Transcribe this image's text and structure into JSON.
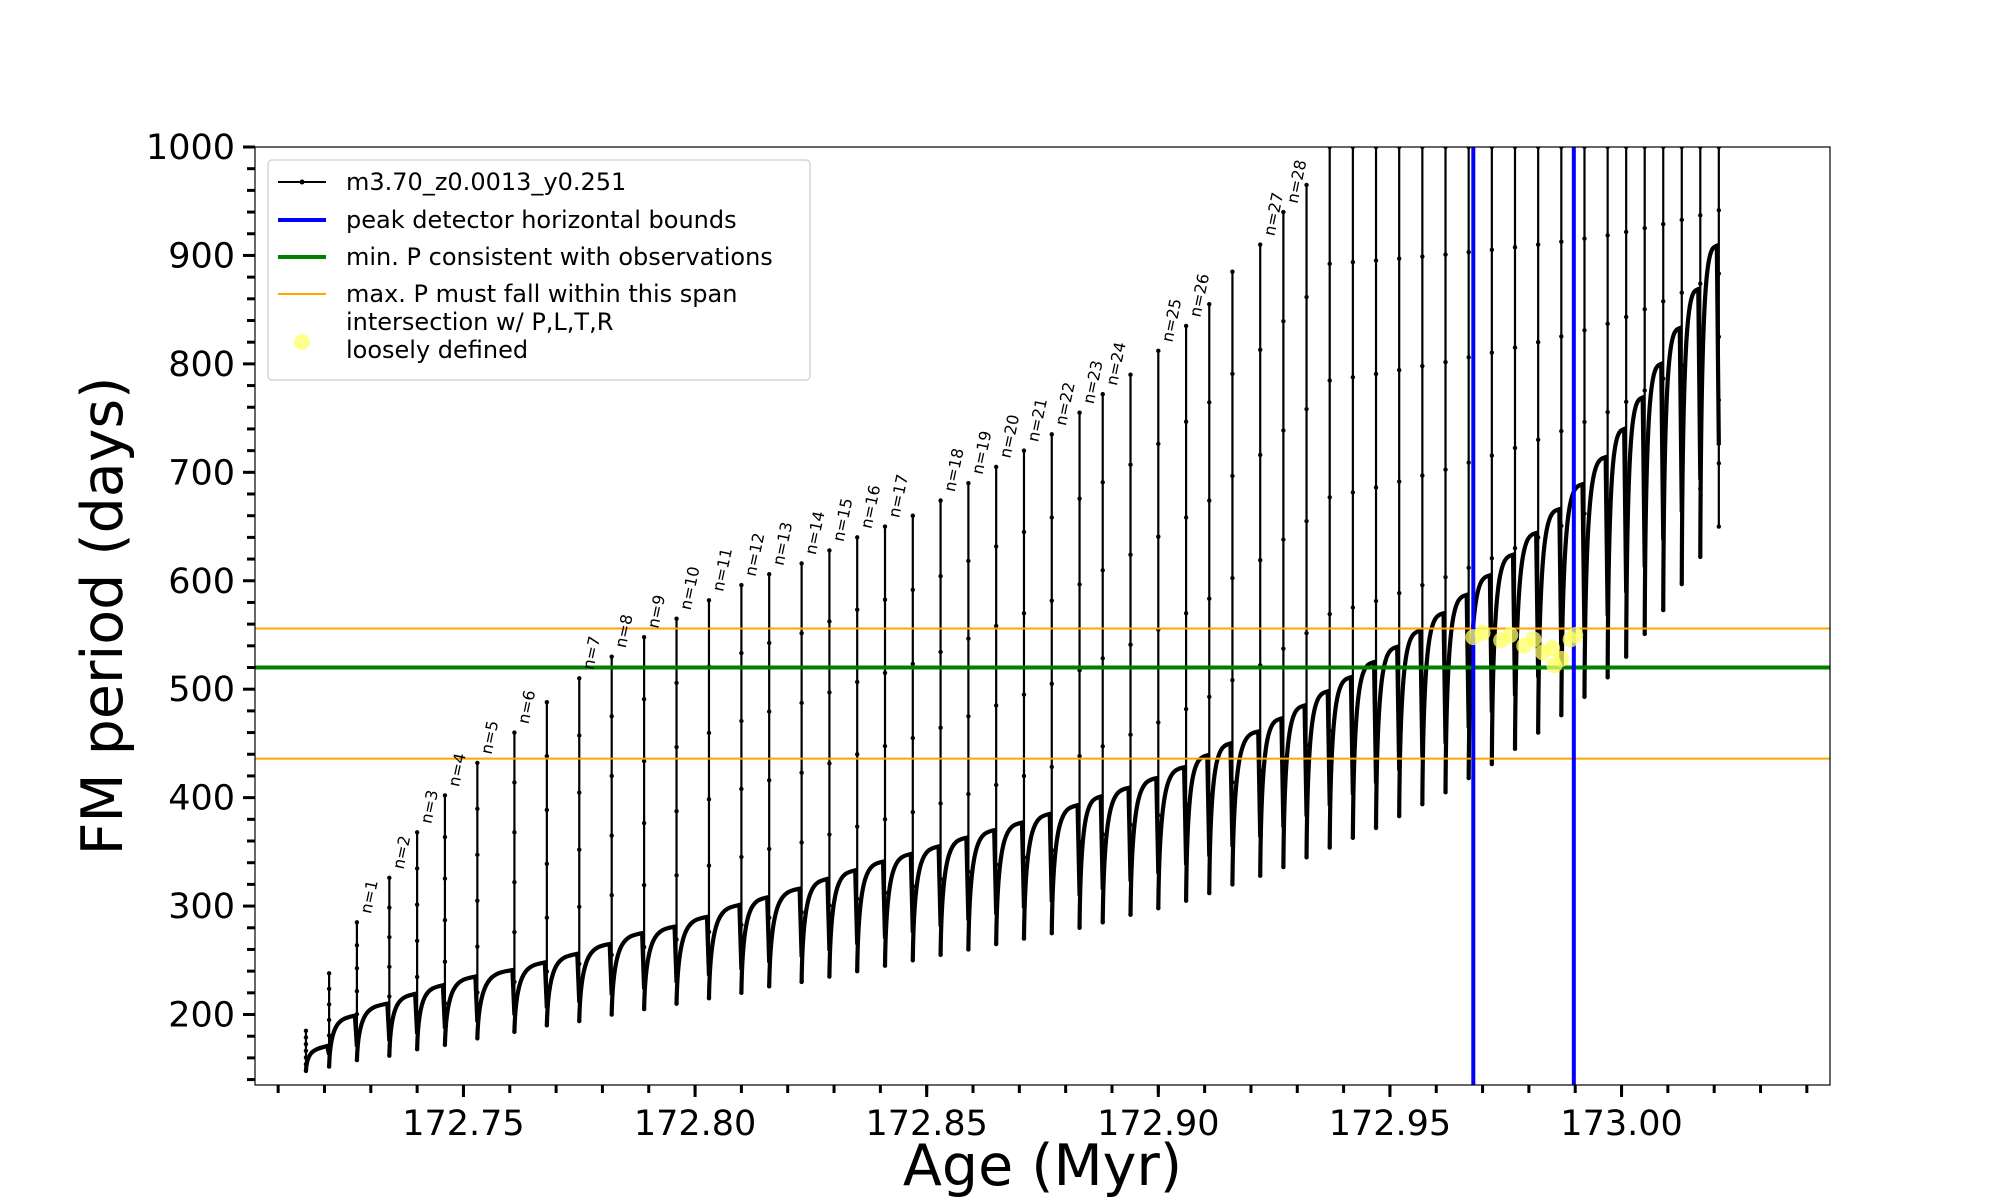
{
  "chart_data": {
    "type": "line",
    "xlabel": "Age (Myr)",
    "ylabel": "FM period (days)",
    "xlim": [
      172.705,
      173.045
    ],
    "ylim": [
      135,
      1000
    ],
    "x_ticks": [
      "172.75",
      "172.80",
      "172.85",
      "172.90",
      "172.95",
      "173.00"
    ],
    "x_tick_values": [
      172.75,
      172.8,
      172.85,
      172.9,
      172.95,
      173.0
    ],
    "y_ticks": [
      "200",
      "300",
      "400",
      "500",
      "600",
      "700",
      "800",
      "900",
      "1000"
    ],
    "y_tick_values": [
      200,
      300,
      400,
      500,
      600,
      700,
      800,
      900,
      1000
    ],
    "grid": false,
    "legend_position": "top-left",
    "legend": [
      {
        "label": "m3.70_z0.0013_y0.251",
        "color": "#000000",
        "style": "line-marker"
      },
      {
        "label": "peak detector horizontal bounds",
        "color": "#0000ff",
        "style": "thick-line"
      },
      {
        "label": "min. P consistent with observations",
        "color": "#008000",
        "style": "thick-line"
      },
      {
        "label": "max. P must fall within this span",
        "color": "#ffa500",
        "style": "thin-line"
      },
      {
        "label": "intersection w/ P,L,T,R\nloosely defined",
        "color": "#ffff66",
        "style": "marker"
      }
    ],
    "reference_lines": {
      "vertical_blue": [
        172.968,
        172.9897
      ],
      "horizontal_green": 520,
      "horizontal_orange": [
        436,
        556
      ]
    },
    "series": [
      {
        "name": "m3.70_z0.0013_y0.251",
        "color": "#000000",
        "pulses": [
          {
            "x": 172.716,
            "low": 148,
            "high": 185,
            "top": 168
          },
          {
            "x": 172.721,
            "low": 152,
            "high": 238,
            "top": 196
          },
          {
            "x": 172.727,
            "low": 158,
            "high": 285,
            "top": 207,
            "label": "n=1"
          },
          {
            "x": 172.734,
            "low": 162,
            "high": 326,
            "top": 216,
            "label": "n=2"
          },
          {
            "x": 172.74,
            "low": 168,
            "high": 368,
            "top": 224,
            "label": "n=3"
          },
          {
            "x": 172.746,
            "low": 172,
            "high": 402,
            "top": 232,
            "label": "n=4"
          },
          {
            "x": 172.753,
            "low": 178,
            "high": 432,
            "top": 238,
            "label": "n=5"
          },
          {
            "x": 172.761,
            "low": 184,
            "high": 460,
            "top": 245,
            "label": "n=6"
          },
          {
            "x": 172.768,
            "low": 190,
            "high": 488,
            "top": 253
          },
          {
            "x": 172.775,
            "low": 194,
            "high": 510,
            "top": 262,
            "label": "n=7"
          },
          {
            "x": 172.782,
            "low": 200,
            "high": 530,
            "top": 272,
            "label": "n=8"
          },
          {
            "x": 172.789,
            "low": 205,
            "high": 548,
            "top": 278,
            "label": "n=9"
          },
          {
            "x": 172.796,
            "low": 210,
            "high": 565,
            "top": 287,
            "label": "n=10"
          },
          {
            "x": 172.803,
            "low": 215,
            "high": 582,
            "top": 298,
            "label": "n=11"
          },
          {
            "x": 172.81,
            "low": 220,
            "high": 596,
            "top": 305,
            "label": "n=12"
          },
          {
            "x": 172.816,
            "low": 226,
            "high": 606,
            "top": 313,
            "label": "n=13"
          },
          {
            "x": 172.823,
            "low": 230,
            "high": 616,
            "top": 322,
            "label": "n=14"
          },
          {
            "x": 172.829,
            "low": 235,
            "high": 628,
            "top": 330,
            "label": "n=15"
          },
          {
            "x": 172.835,
            "low": 240,
            "high": 640,
            "top": 338,
            "label": "n=16"
          },
          {
            "x": 172.841,
            "low": 245,
            "high": 650,
            "top": 345,
            "label": "n=17"
          },
          {
            "x": 172.847,
            "low": 250,
            "high": 660,
            "top": 352
          },
          {
            "x": 172.853,
            "low": 255,
            "high": 674,
            "top": 360,
            "label": "n=18"
          },
          {
            "x": 172.859,
            "low": 260,
            "high": 690,
            "top": 367,
            "label": "n=19"
          },
          {
            "x": 172.865,
            "low": 265,
            "high": 705,
            "top": 374,
            "label": "n=20"
          },
          {
            "x": 172.871,
            "low": 270,
            "high": 720,
            "top": 382,
            "label": "n=21"
          },
          {
            "x": 172.877,
            "low": 275,
            "high": 735,
            "top": 390,
            "label": "n=22"
          },
          {
            "x": 172.883,
            "low": 280,
            "high": 755,
            "top": 398,
            "label": "n=23"
          },
          {
            "x": 172.888,
            "low": 285,
            "high": 772,
            "top": 406,
            "label": "n=24"
          },
          {
            "x": 172.894,
            "low": 292,
            "high": 790,
            "top": 415
          },
          {
            "x": 172.9,
            "low": 298,
            "high": 812,
            "top": 425,
            "label": "n=25"
          },
          {
            "x": 172.906,
            "low": 305,
            "high": 835,
            "top": 436,
            "label": "n=26"
          },
          {
            "x": 172.911,
            "low": 312,
            "high": 855,
            "top": 447
          },
          {
            "x": 172.916,
            "low": 320,
            "high": 885,
            "top": 458
          },
          {
            "x": 172.922,
            "low": 328,
            "high": 910,
            "top": 470,
            "label": "n=27"
          },
          {
            "x": 172.927,
            "low": 336,
            "high": 940,
            "top": 482,
            "label": "n=28"
          },
          {
            "x": 172.932,
            "low": 345,
            "high": 965,
            "top": 495
          },
          {
            "x": 172.937,
            "low": 354,
            "high": 1000,
            "top": 508
          },
          {
            "x": 172.942,
            "low": 363,
            "high": 1000,
            "top": 522
          },
          {
            "x": 172.947,
            "low": 372,
            "high": 1000,
            "top": 536
          },
          {
            "x": 172.952,
            "low": 383,
            "high": 1000,
            "top": 551
          },
          {
            "x": 172.957,
            "low": 394,
            "high": 1000,
            "top": 567
          },
          {
            "x": 172.962,
            "low": 405,
            "high": 1000,
            "top": 584
          },
          {
            "x": 172.967,
            "low": 418,
            "high": 1000,
            "top": 602
          },
          {
            "x": 172.972,
            "low": 431,
            "high": 1000,
            "top": 621
          },
          {
            "x": 172.977,
            "low": 445,
            "high": 1000,
            "top": 641
          },
          {
            "x": 172.982,
            "low": 460,
            "high": 1000,
            "top": 663
          },
          {
            "x": 172.987,
            "low": 476,
            "high": 1000,
            "top": 686
          },
          {
            "x": 172.992,
            "low": 493,
            "high": 1000,
            "top": 711
          },
          {
            "x": 172.997,
            "low": 511,
            "high": 1000,
            "top": 737
          },
          {
            "x": 173.001,
            "low": 530,
            "high": 1000,
            "top": 766
          },
          {
            "x": 173.005,
            "low": 551,
            "high": 1000,
            "top": 797
          },
          {
            "x": 173.009,
            "low": 573,
            "high": 1000,
            "top": 830
          },
          {
            "x": 173.013,
            "low": 597,
            "high": 1000,
            "top": 866
          },
          {
            "x": 173.017,
            "low": 622,
            "high": 1000,
            "top": 906
          },
          {
            "x": 173.021,
            "low": 650,
            "high": 1000,
            "top": 950
          }
        ]
      },
      {
        "name": "intersection w/ P,L,T,R loosely defined",
        "color": "#ffff66",
        "points": [
          {
            "x": 172.968,
            "y": 548
          },
          {
            "x": 172.97,
            "y": 552
          },
          {
            "x": 172.974,
            "y": 545
          },
          {
            "x": 172.976,
            "y": 550
          },
          {
            "x": 172.979,
            "y": 540
          },
          {
            "x": 172.981,
            "y": 546
          },
          {
            "x": 172.983,
            "y": 534
          },
          {
            "x": 172.985,
            "y": 538
          },
          {
            "x": 172.9855,
            "y": 522
          },
          {
            "x": 172.987,
            "y": 528
          },
          {
            "x": 172.989,
            "y": 546
          },
          {
            "x": 172.99,
            "y": 550
          }
        ]
      }
    ]
  }
}
